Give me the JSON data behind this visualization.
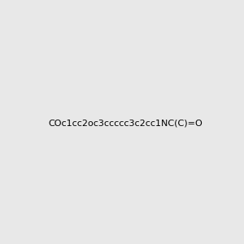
{
  "smiles": "COc1cc2oc3ccccc3c2cc1NC(C)=O",
  "image_size": 300,
  "background_color": "#e8e8e8",
  "title": "",
  "dpi": 100
}
